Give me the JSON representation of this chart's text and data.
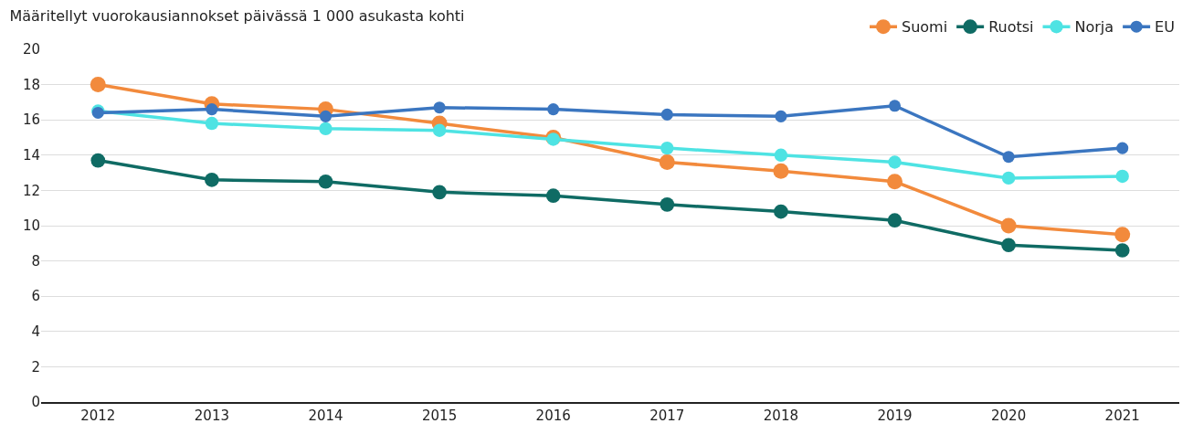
{
  "chart_data": {
    "type": "line",
    "title": "Määritellyt vuorokausiannokset päivässä 1 000 asukasta kohti",
    "categories": [
      "2012",
      "2013",
      "2014",
      "2015",
      "2016",
      "2017",
      "2018",
      "2019",
      "2020",
      "2021"
    ],
    "series": [
      {
        "name": "Suomi",
        "color": "#f28a3c",
        "values": [
          18.0,
          16.9,
          16.6,
          15.8,
          15.0,
          13.6,
          13.1,
          12.5,
          10.0,
          9.5
        ]
      },
      {
        "name": "Ruotsi",
        "color": "#0f6b64",
        "values": [
          13.7,
          12.6,
          12.5,
          11.9,
          11.7,
          11.2,
          10.8,
          10.3,
          8.9,
          8.6
        ]
      },
      {
        "name": "Norja",
        "color": "#4ee3e3",
        "values": [
          16.5,
          15.8,
          15.5,
          15.4,
          14.9,
          14.4,
          14.0,
          13.6,
          12.7,
          12.8
        ]
      },
      {
        "name": "EU",
        "color": "#3b76c0",
        "values": [
          16.4,
          16.6,
          16.2,
          16.7,
          16.6,
          16.3,
          16.2,
          16.8,
          13.9,
          14.4
        ]
      }
    ],
    "ylim": [
      0,
      20
    ],
    "yticks": [
      0,
      2,
      4,
      6,
      8,
      10,
      12,
      14,
      16,
      18,
      20
    ],
    "grid": "y",
    "legend": "top right",
    "marker": "circle",
    "line_style": "solid"
  }
}
